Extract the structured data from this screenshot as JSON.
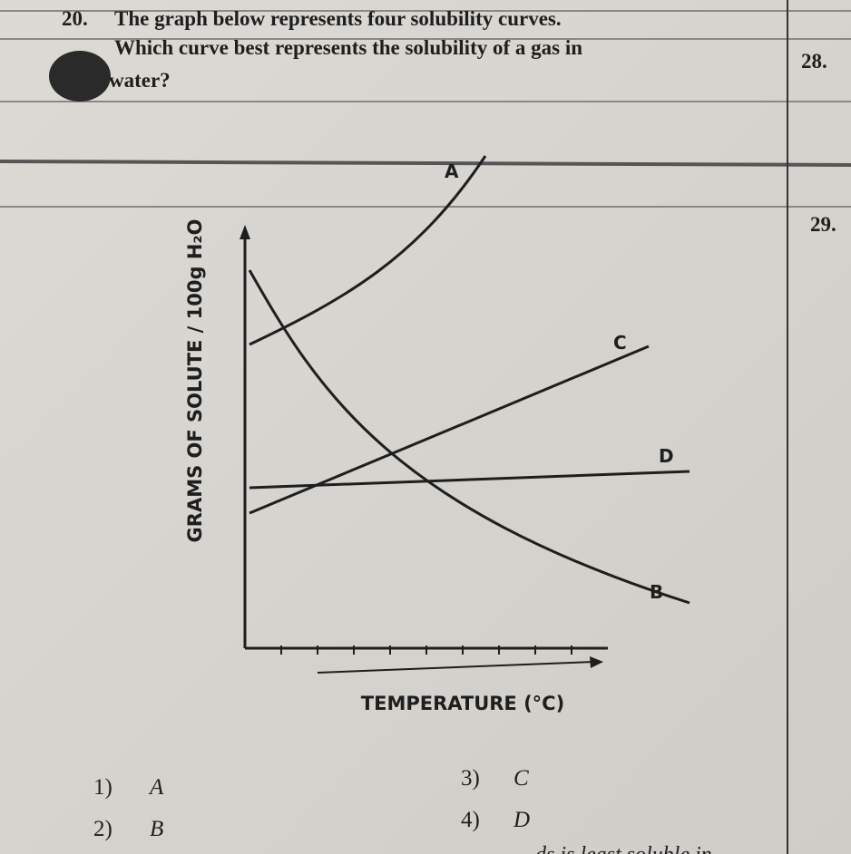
{
  "question": {
    "number": "20.",
    "lines": [
      "The graph below represents four solubility curves.",
      "Which curve best represents the solubility of a gas in",
      "water?"
    ]
  },
  "margin_numbers": [
    "28.",
    "29."
  ],
  "graph": {
    "y_label": "GRAMS OF SOLUTE / 100g H₂O",
    "x_label": "TEMPERATURE (°C)",
    "curves": [
      "A",
      "B",
      "C",
      "D"
    ]
  },
  "choices": [
    {
      "number": "1)",
      "answer": "A"
    },
    {
      "number": "2)",
      "answer": "B"
    },
    {
      "number": "3)",
      "answer": "C"
    },
    {
      "number": "4)",
      "answer": "D"
    }
  ],
  "footer_fragment": "ds is least soluble in"
}
